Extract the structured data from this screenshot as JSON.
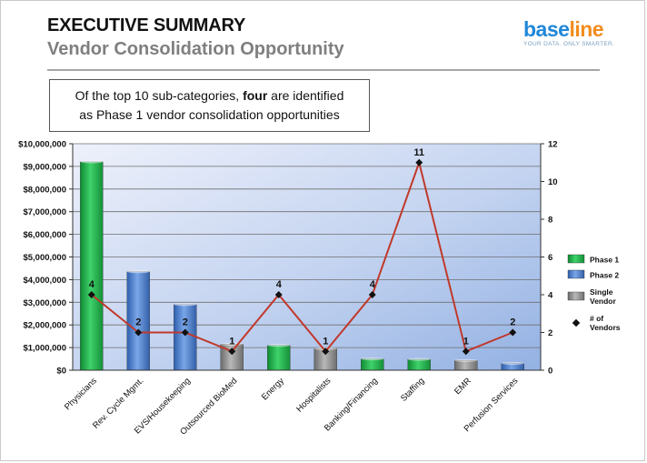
{
  "header": {
    "title": "EXECUTIVE SUMMARY",
    "subtitle": "Vendor Consolidation Opportunity"
  },
  "logo": {
    "word_a": "base",
    "word_b": "line",
    "tagline": "YOUR DATA. ONLY SMARTER."
  },
  "callout": {
    "before": "Of the top 10 sub-categories, ",
    "bold": "four",
    "after_line1": " are identified",
    "line2": "as Phase 1 vendor consolidation opportunities"
  },
  "colors": {
    "phase1": "#22b34a",
    "phase2": "#4a7fcf",
    "single_vendor": "#8c8c8c",
    "line": "#c0392b"
  },
  "chart_data": {
    "type": "bar",
    "categories": [
      "Physicians",
      "Rev. Cycle Mgmt.",
      "EVS/Housekeeping",
      "Outsourced BioMed",
      "Energy",
      "Hospitalists",
      "Banking/Financing",
      "Staffing",
      "EMR",
      "Perfusion Services"
    ],
    "spend": [
      9200000,
      4350000,
      2900000,
      1150000,
      1100000,
      950000,
      500000,
      480000,
      430000,
      300000
    ],
    "groups": [
      "Phase 1",
      "Phase 2",
      "Phase 2",
      "Single Vendor",
      "Phase 1",
      "Single Vendor",
      "Phase 1",
      "Phase 1",
      "Single Vendor",
      "Phase 2"
    ],
    "vendors": [
      4,
      2,
      2,
      1,
      4,
      1,
      4,
      11,
      1,
      2
    ],
    "vendor_labels": [
      "4",
      "2",
      "2",
      "1",
      "4",
      "1",
      "4",
      "11",
      "1",
      "2"
    ],
    "y_ticks": [
      "$10,000,000",
      "$9,000,000",
      "$8,000,000",
      "$7,000,000",
      "$6,000,000",
      "$5,000,000",
      "$4,000,000",
      "$3,000,000",
      "$2,000,000",
      "$1,000,000",
      "$0"
    ],
    "y2_ticks": [
      "12",
      "10",
      "8",
      "6",
      "4",
      "2",
      "0"
    ],
    "ylim": [
      0,
      10000000
    ],
    "y2lim": [
      0,
      12
    ],
    "grid": true,
    "legend": {
      "position": "right",
      "phase1": "Phase 1",
      "phase2": "Phase 2",
      "single_line1": "Single",
      "single_line2": "Vendor",
      "vendors_line1": "# of",
      "vendors_line2": "Vendors"
    }
  }
}
